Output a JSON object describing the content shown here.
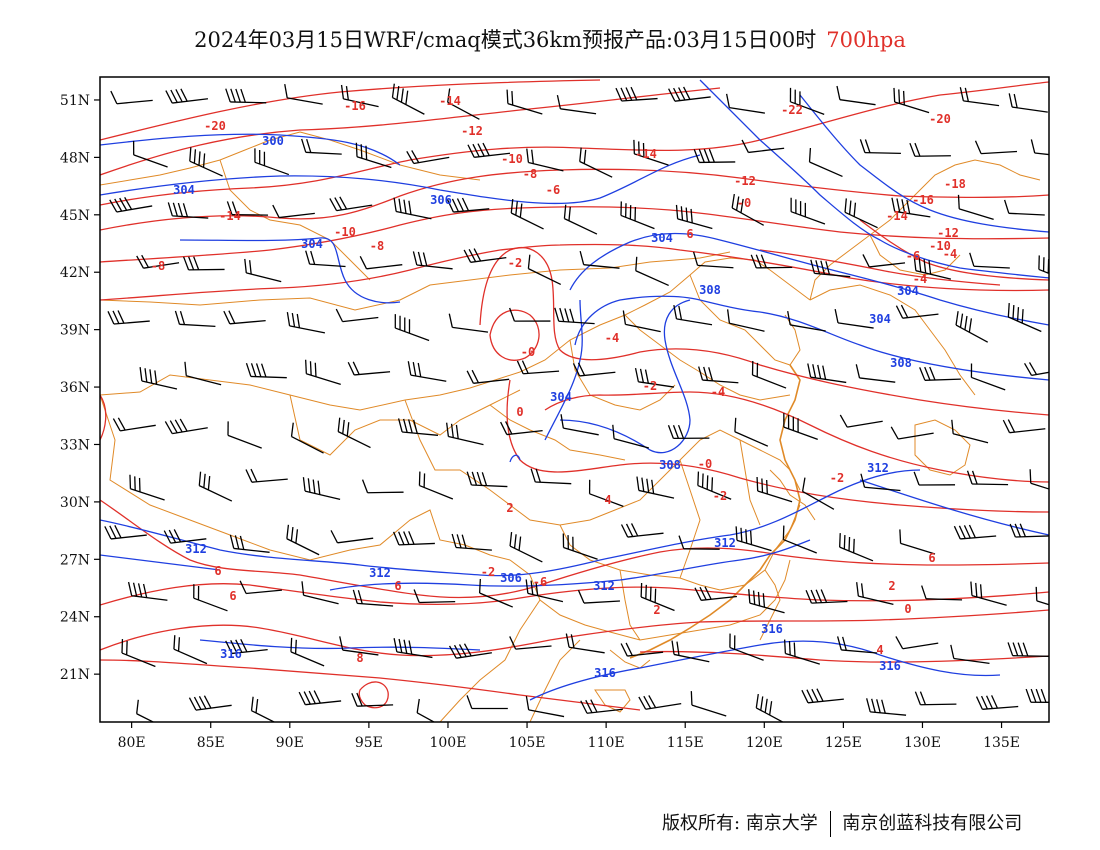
{
  "title": {
    "main": "2024年03月15日WRF/cmaq模式36km预报产品:03月15日00时",
    "level": "700hpa"
  },
  "colors": {
    "temperature": "#e0302a",
    "geopotential": "#1f3fe0",
    "boundary": "#e08a28",
    "wind": "#000000",
    "frame": "#000000"
  },
  "map": {
    "lon_range": [
      78,
      138
    ],
    "lat_range": [
      18.5,
      52.2
    ],
    "lon_ticks": [
      "80E",
      "85E",
      "90E",
      "95E",
      "100E",
      "105E",
      "110E",
      "115E",
      "120E",
      "125E",
      "130E",
      "135E"
    ],
    "lat_ticks": [
      "51N",
      "48N",
      "45N",
      "42N",
      "39N",
      "36N",
      "33N",
      "30N",
      "27N",
      "24N",
      "21N"
    ],
    "temperature_labels": [
      "-20",
      "-16",
      "-14",
      "-12",
      "-10",
      "-8",
      "-6",
      "-14",
      "-10",
      "-8",
      "-8",
      "-14",
      "-22",
      "-12",
      "-0",
      "-20",
      "-18",
      "-16",
      "-14",
      "-12",
      "-10",
      "-6",
      "-4",
      "-2",
      "-0",
      "-4",
      "-2",
      "-4",
      "0",
      "-0",
      "-2",
      "-2",
      "2",
      "4",
      "-2",
      "-6",
      "6",
      "6",
      "6",
      "8",
      "2",
      "6",
      "0",
      "2",
      "4",
      "6",
      "-4"
    ],
    "height_labels": [
      "300",
      "304",
      "306",
      "304",
      "304",
      "308",
      "304",
      "304",
      "308",
      "304",
      "308",
      "312",
      "312",
      "312",
      "306",
      "312",
      "312",
      "316",
      "316",
      "316",
      "316"
    ]
  },
  "footer": {
    "copyright": "版权所有:",
    "org1": "南京大学",
    "org2": "南京创蓝科技有限公司"
  }
}
